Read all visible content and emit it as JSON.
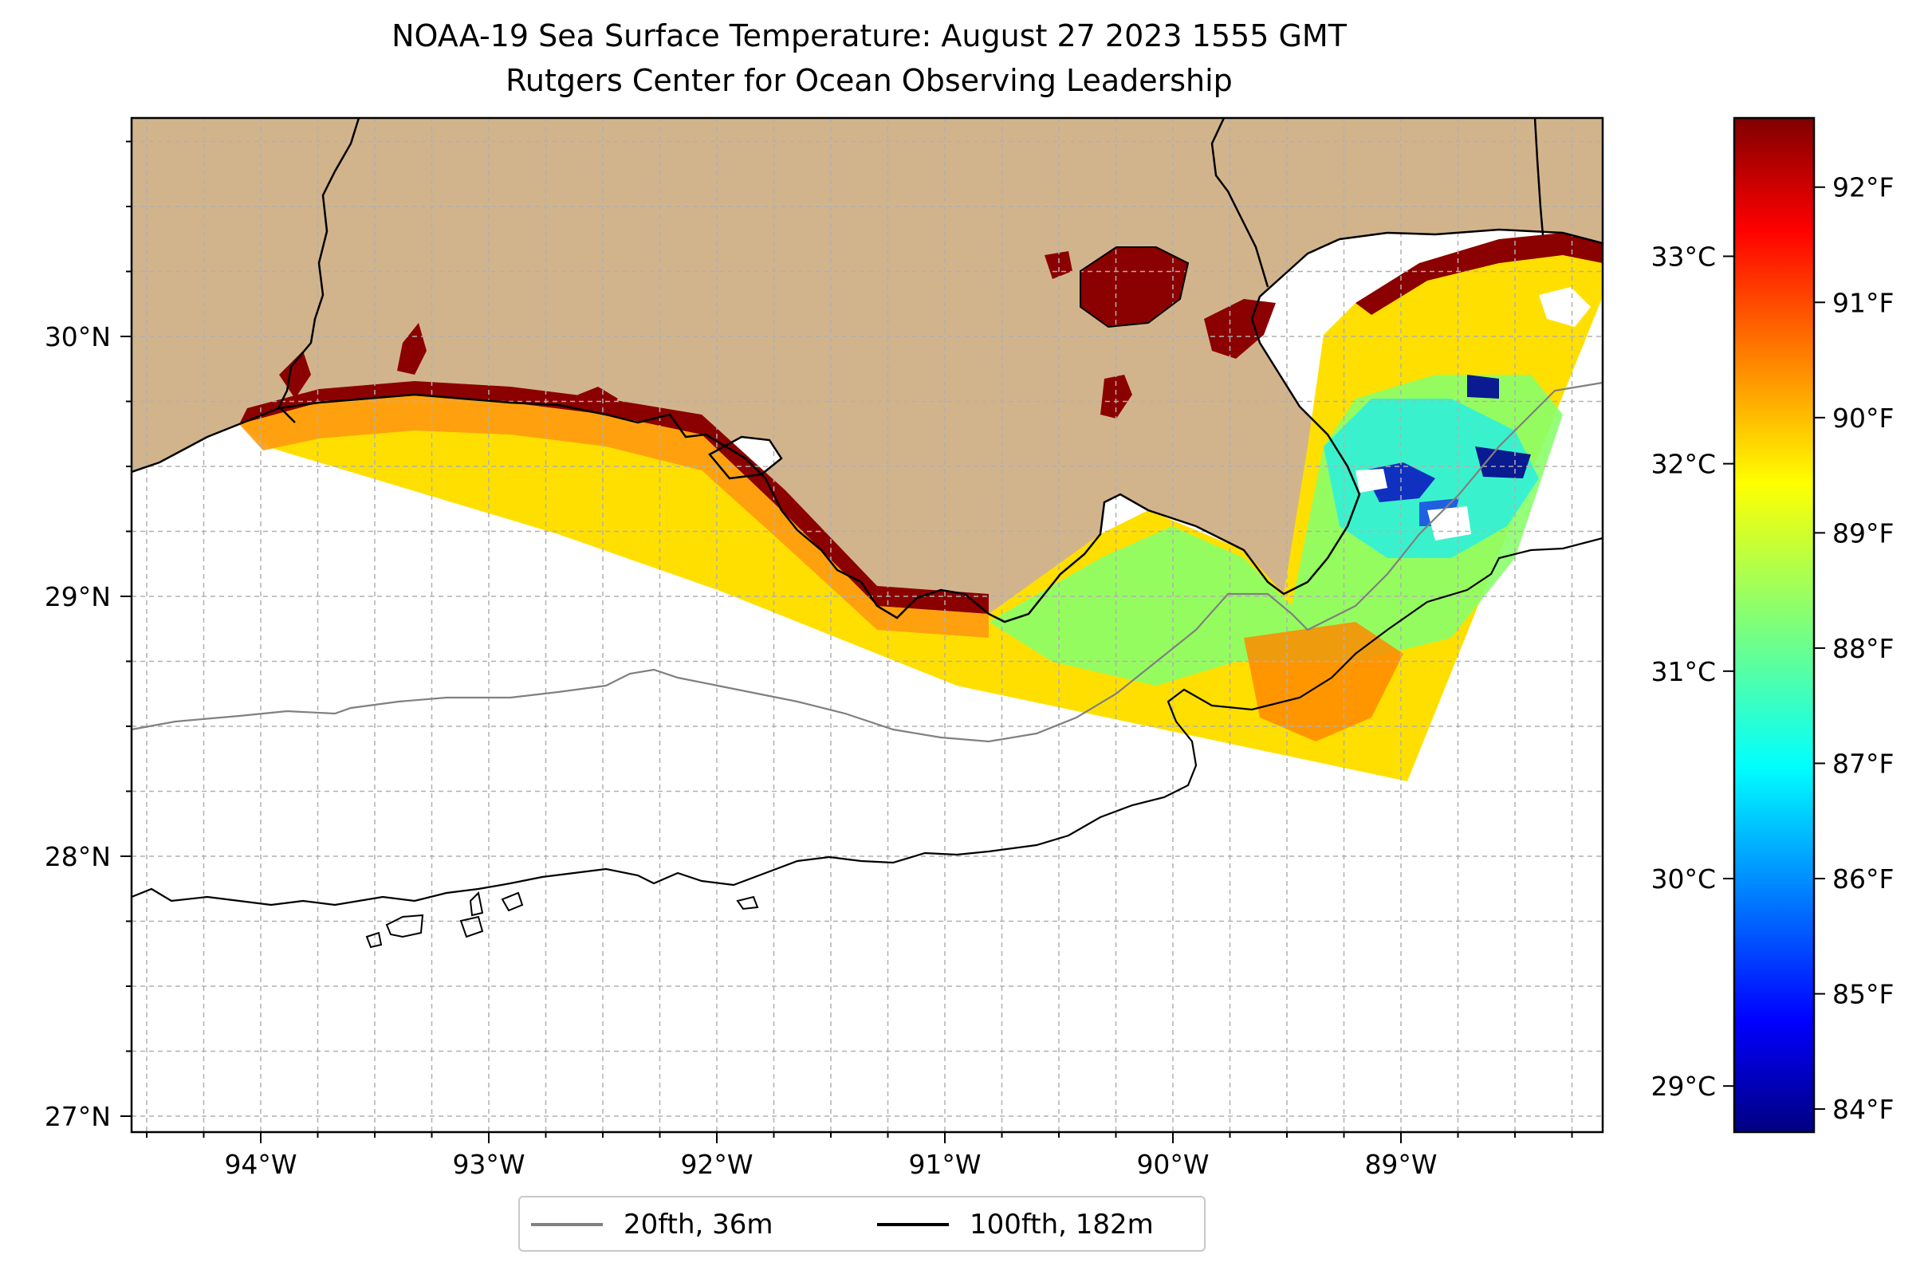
{
  "title": "NOAA-19 Sea Surface Temperature: August 27 2023 1555 GMT",
  "subtitle": "Rutgers Center for Ocean Observing Leadership",
  "lon_ticks": [
    "94°W",
    "93°W",
    "92°W",
    "91°W",
    "90°W",
    "89°W"
  ],
  "lat_ticks": [
    "30°N",
    "29°N",
    "28°N",
    "27°N"
  ],
  "colorbar": {
    "celsius_ticks": [
      "33°C",
      "32°C",
      "31°C",
      "30°C",
      "29°C"
    ],
    "fahrenheit_ticks": [
      "92°F",
      "91°F",
      "90°F",
      "89°F",
      "88°F",
      "87°F",
      "86°F",
      "85°F",
      "84°F"
    ],
    "colormap": "jet",
    "range_f": [
      83.8,
      92.6
    ]
  },
  "legend": [
    {
      "label": "20fth, 36m",
      "color": "#808080"
    },
    {
      "label": "100fth, 182m",
      "color": "#000000"
    }
  ],
  "colors": {
    "land": "#D2B48C",
    "ocean": "#ffffff",
    "grid": "#b0b0b0"
  }
}
